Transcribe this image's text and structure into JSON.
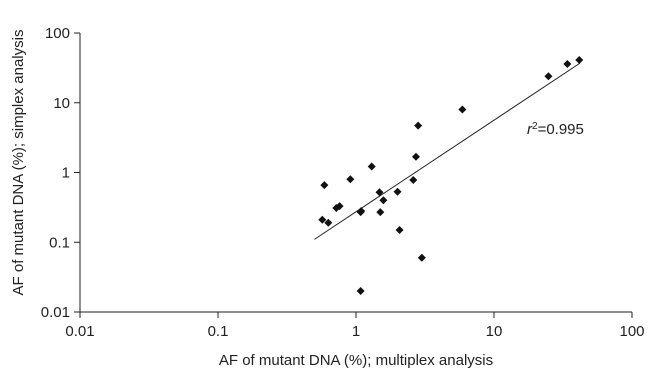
{
  "chart_data": {
    "type": "scatter",
    "xlabel": "AF of mutant DNA (%); multiplex analysis",
    "ylabel": "AF of mutant DNA (%); simplex analysis",
    "xscale": "log",
    "yscale": "log",
    "xlim": [
      0.01,
      100
    ],
    "ylim": [
      0.01,
      100
    ],
    "x_ticks": [
      "0.01",
      "0.1",
      "1",
      "10",
      "100"
    ],
    "y_ticks": [
      "0.01",
      "0.1",
      "1",
      "10",
      "100"
    ],
    "grid": false,
    "legend": "none",
    "marker": "diamond",
    "marker_color": "#111111",
    "points": [
      {
        "x": 0.57,
        "y": 0.21
      },
      {
        "x": 0.59,
        "y": 0.66
      },
      {
        "x": 0.63,
        "y": 0.19
      },
      {
        "x": 0.72,
        "y": 0.31
      },
      {
        "x": 0.76,
        "y": 0.33
      },
      {
        "x": 0.91,
        "y": 0.8
      },
      {
        "x": 1.08,
        "y": 0.27
      },
      {
        "x": 1.09,
        "y": 0.28
      },
      {
        "x": 1.08,
        "y": 0.02
      },
      {
        "x": 1.3,
        "y": 1.22
      },
      {
        "x": 1.48,
        "y": 0.52
      },
      {
        "x": 1.5,
        "y": 0.27
      },
      {
        "x": 1.58,
        "y": 0.4
      },
      {
        "x": 2.0,
        "y": 0.53
      },
      {
        "x": 2.07,
        "y": 0.15
      },
      {
        "x": 2.6,
        "y": 0.78
      },
      {
        "x": 2.72,
        "y": 1.68
      },
      {
        "x": 2.82,
        "y": 4.7
      },
      {
        "x": 3.0,
        "y": 0.06
      },
      {
        "x": 5.9,
        "y": 8.0
      },
      {
        "x": 24.8,
        "y": 24.0
      },
      {
        "x": 34.0,
        "y": 36.0
      },
      {
        "x": 41.5,
        "y": 41.0
      }
    ],
    "trendline": {
      "x": [
        0.5,
        42
      ],
      "y": [
        0.11,
        37
      ]
    },
    "annotation": {
      "r_symbol": "r",
      "superscript": "2",
      "text": "=0.995"
    }
  }
}
